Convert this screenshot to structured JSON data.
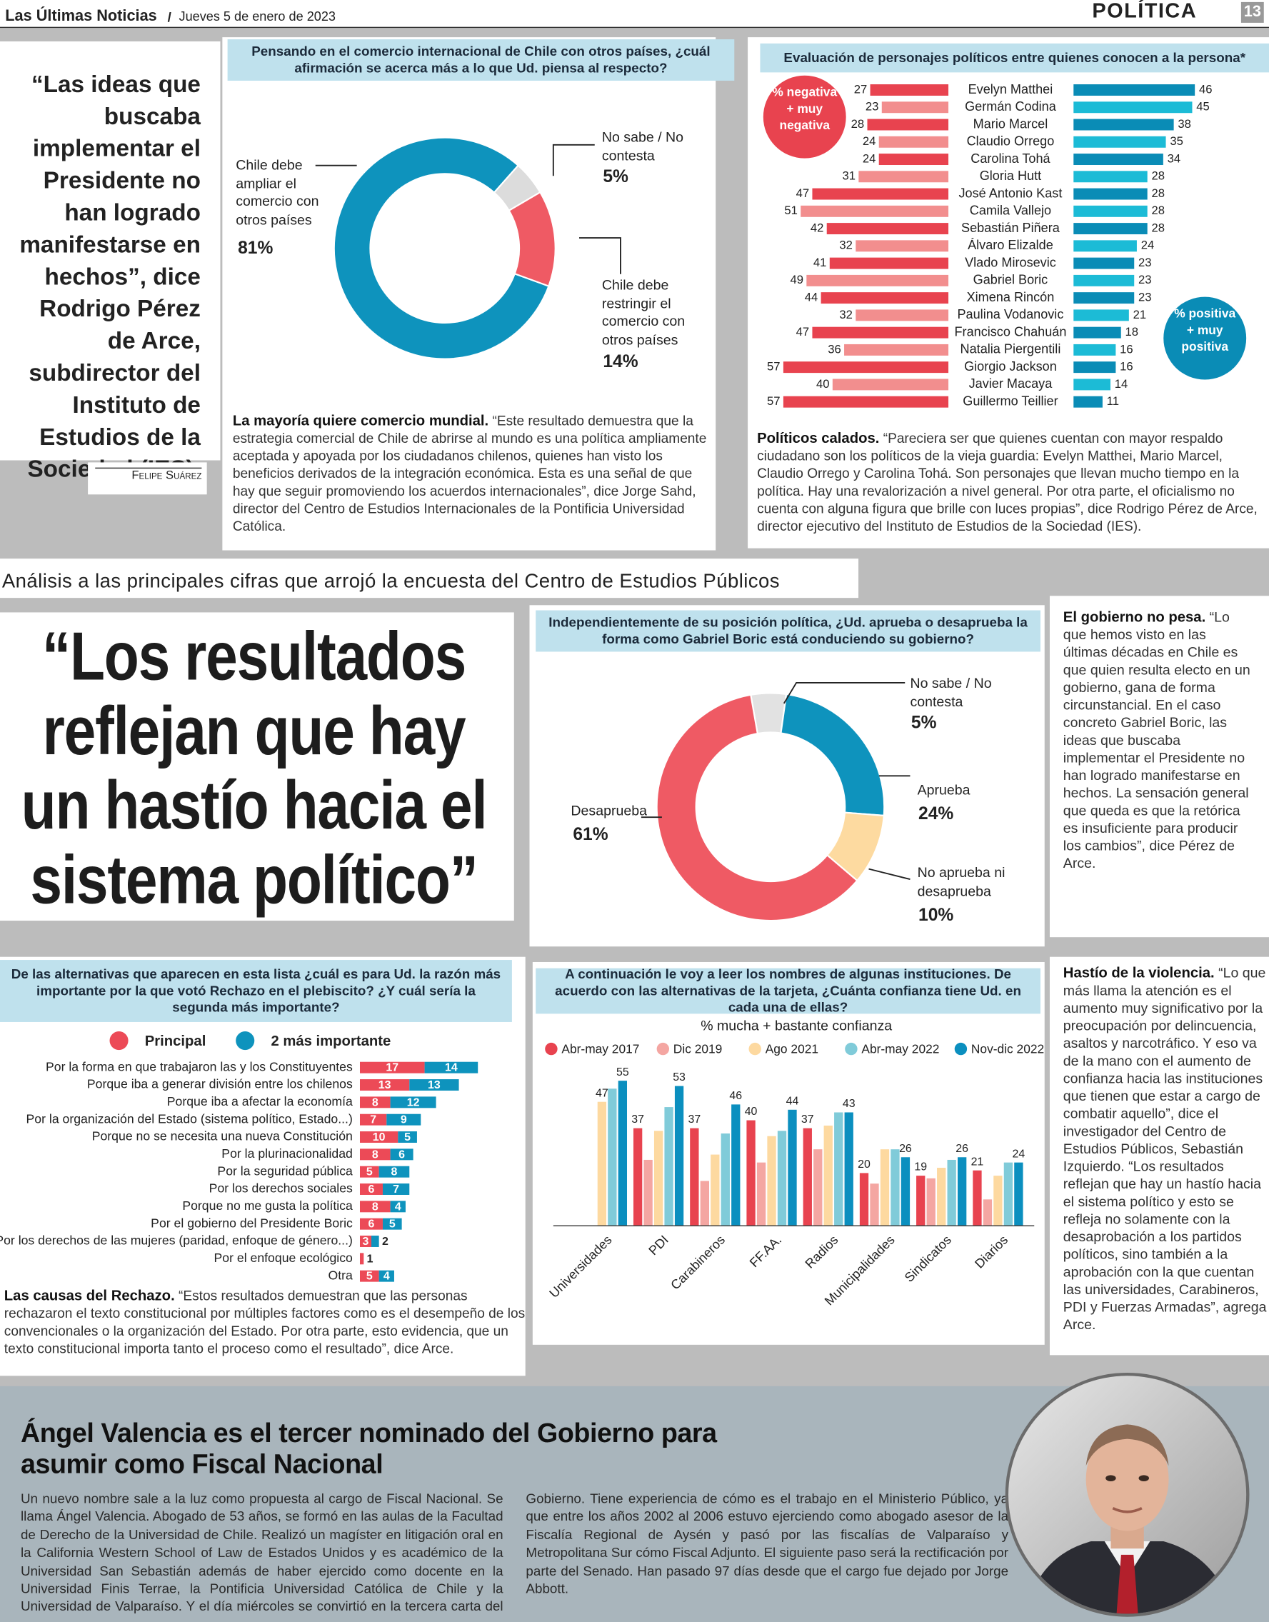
{
  "header": {
    "paper": "Las Últimas Noticias",
    "date": "Jueves 5 de enero de 2023",
    "section": "POLÍTICA",
    "page": "13"
  },
  "side_quote": {
    "text": "“Las ideas que buscaba implementar el Presidente no han logrado manifestarse en hechos”, dice Rodrigo Pérez de Arce, subdirector del Instituto de Estudios de la Sociedad (IES).",
    "credit": "Felipe Suárez"
  },
  "strip": "Análisis a las principales cifras que arrojó la encuesta del Centro de Estudios Públicos",
  "big_quote": "“Los resultados reflejan que hay un hastío hacia el sistema político”",
  "charts": [
    {
      "type": "donut",
      "title": "Pensando en el comercio internacional de Chile con otros países, ¿cuál afirmación se acerca más a lo que Ud. piensa al respecto?",
      "categories": [
        "Chile debe ampliar el comercio con otros países",
        "No sabe / No contesta",
        "Chile debe restringir el comercio con otros países"
      ],
      "values": [
        81,
        5,
        14
      ],
      "value_labels": [
        "81%",
        "5%",
        "14%"
      ],
      "colors": [
        "#0e93bd",
        "#dcdcdc",
        "#ef5a64"
      ],
      "caption_lead": "La mayoría quiere comercio mundial.",
      "caption": "“Este resultado demuestra que la estrategia comercial de Chile de abrirse al mundo es una política ampliamente aceptada y apoyada por los ciudadanos chilenos, quienes han visto los beneficios derivados de la integración económica. Esta es una señal de que hay que seguir promoviendo los acuerdos internacionales”, dice Jorge Sahd, director del Centro de Estudios Internacionales de la Pontificia Universidad Católica."
    },
    {
      "type": "diverging_bar",
      "title": "Evaluación de personajes políticos entre quienes conocen a la persona*",
      "categories": [
        "Evelyn Matthei",
        "Germán Codina",
        "Mario Marcel",
        "Claudio Orrego",
        "Carolina Tohá",
        "Gloria Hutt",
        "José Antonio Kast",
        "Camila Vallejo",
        "Sebastián Piñera",
        "Álvaro Elizalde",
        "Vlado Mirosevic",
        "Gabriel Boric",
        "Ximena Rincón",
        "Paulina Vodanovic",
        "Francisco Chahuán",
        "Natalia Piergentili",
        "Giorgio Jackson",
        "Javier Macaya",
        "Guillermo Teillier"
      ],
      "series": [
        {
          "name": "% negativa + muy negativa",
          "colors": [
            "#e8434f",
            "#f28e8e"
          ],
          "values": [
            27,
            23,
            28,
            24,
            24,
            31,
            47,
            51,
            42,
            32,
            41,
            49,
            44,
            32,
            47,
            36,
            57,
            40,
            57
          ]
        },
        {
          "name": "% positiva + muy positiva",
          "colors": [
            "#0a8cb6",
            "#1cbbd6"
          ],
          "values": [
            46,
            45,
            38,
            35,
            34,
            28,
            28,
            28,
            28,
            24,
            23,
            23,
            23,
            21,
            18,
            16,
            16,
            14,
            11
          ]
        }
      ],
      "caption_lead": "Políticos calados.",
      "caption": "“Pareciera ser que quienes cuentan con mayor respaldo ciudadano son los políticos de la vieja guardia: Evelyn Matthei, Mario Marcel, Claudio Orrego y Carolina Tohá. Son personajes que llevan mucho tiempo en la política. Hay una revalorización a nivel general. Por otra parte, el oficialismo no cuenta con alguna figura que brille con luces propias”, dice Rodrigo Pérez de Arce, director ejecutivo del Instituto de Estudios de la Sociedad (IES)."
    },
    {
      "type": "donut",
      "title": "Independientemente de su posición política, ¿Ud. aprueba o desaprueba la forma como Gabriel Boric está conduciendo su gobierno?",
      "categories": [
        "No sabe / No contesta",
        "Aprueba",
        "No aprueba ni desaprueba",
        "Desaprueba"
      ],
      "values": [
        5,
        24,
        10,
        61
      ],
      "value_labels": [
        "5%",
        "24%",
        "10%",
        "61%"
      ],
      "colors": [
        "#e2e2e2",
        "#0e93bd",
        "#fddaa0",
        "#ef5a64"
      ]
    },
    {
      "type": "stacked_barh",
      "title": "De las alternativas que aparecen en esta lista ¿cuál es para Ud. la razón más importante por la que votó Rechazo en el plebiscito? ¿Y cuál sería la segunda más importante?",
      "categories": [
        "Por la forma en que trabajaron las y los Constituyentes",
        "Porque iba a generar división entre los chilenos",
        "Porque iba a afectar la economía",
        "Por la organización del Estado (sistema político, Estado...)",
        "Porque no se necesita una nueva Constitución",
        "Por la plurinacionalidad",
        "Por la seguridad pública",
        "Por los derechos sociales",
        "Porque no me gusta la política",
        "Por el gobierno del Presidente Boric",
        "Por los derechos de las mujeres (paridad, enfoque de género...)",
        "Por el enfoque ecológico",
        "Otra"
      ],
      "series": [
        {
          "name": "Principal",
          "color": "#ec4a57",
          "values": [
            17,
            13,
            8,
            7,
            10,
            8,
            5,
            6,
            8,
            6,
            3,
            1,
            5
          ]
        },
        {
          "name": "2 más importante",
          "color": "#0e93bd",
          "values": [
            14,
            13,
            12,
            9,
            5,
            6,
            8,
            7,
            4,
            5,
            2,
            null,
            4
          ]
        }
      ],
      "caption_lead": "Las causas del Rechazo.",
      "caption": "“Estos resultados demuestran que las personas rechazaron el texto constitucional por múltiples factores como es el desempeño de los convencionales o la organización del Estado. Por otra parte, esto evidencia, que un texto constitucional importa tanto el proceso como el resultado”, dice Arce."
    },
    {
      "type": "grouped_bar",
      "title": "A continuación le voy a leer los nombres de algunas instituciones. De acuerdo con las alternativas de la tarjeta, ¿Cuánta confianza tiene Ud. en cada una de ellas?",
      "subtitle": "% mucha + bastante confianza",
      "categories": [
        "Universidades",
        "PDI",
        "Carabineros",
        "FF.AA.",
        "Radios",
        "Municipalidades",
        "Sindicatos",
        "Diarios"
      ],
      "series": [
        {
          "name": "Abr-may 2017",
          "color": "#e8434f",
          "values": [
            null,
            37,
            37,
            40,
            37,
            20,
            19,
            21
          ]
        },
        {
          "name": "Dic 2019",
          "color": "#f4a6a2",
          "values": [
            null,
            25,
            17,
            24,
            29,
            16,
            18,
            10
          ]
        },
        {
          "name": "Ago 2021",
          "color": "#fdd9a0",
          "values": [
            47,
            36,
            27,
            34,
            38,
            29,
            22,
            19
          ]
        },
        {
          "name": "Abr-may 2022",
          "color": "#80cbd9",
          "values": [
            52,
            45,
            35,
            36,
            43,
            29,
            25,
            24
          ]
        },
        {
          "name": "Nov-dic 2022",
          "color": "#0b8fbf",
          "values": [
            55,
            53,
            46,
            44,
            43,
            26,
            26,
            24
          ]
        }
      ]
    }
  ],
  "sidebars": [
    {
      "lead": "El gobierno no pesa.",
      "text": "“Lo que hemos visto en las últimas décadas en Chile es que quien resulta electo en un gobierno, gana de forma circunstancial. En el caso concreto Gabriel Boric, las ideas que buscaba implementar el Presidente no han logrado manifestarse en hechos. La sensación general que queda es que la retórica es insuficiente para producir los cambios”, dice Pérez de Arce."
    },
    {
      "lead": "Hastío de la violencia.",
      "text": "“Lo que más llama la atención es el aumento muy significativo por la preocupación por delincuencia, asaltos y narcotráfico. Y eso va de la mano con el aumento de confianza hacia las instituciones que tienen que estar a cargo de combatir aquello”, dice el investigador del Centro de Estudios Públicos, Sebastián Izquierdo. “Los resultados reflejan que hay un hastío hacia el sistema político y esto se refleja no solamente con la desaprobación a los partidos políticos, sino también a la aprobación con la que cuentan las universidades, Carabineros, PDI y Fuerzas Armadas”, agrega Arce."
    }
  ],
  "article": {
    "headline": "Ángel Valencia es el tercer nominado del Gobierno para asumir como Fiscal Nacional",
    "body": "Un nuevo nombre sale a la luz como propuesta al cargo de Fiscal Nacional. Se llama Ángel Valencia. Abogado de 53 años, se formó en las aulas de la Facultad de Derecho de la Universidad de Chile. Realizó un magíster en litigación oral en la California Western School of Law de Estados Unidos y es académico de la Universidad San Sebastián además de haber ejercido como docente en la Universidad Finis Terrae, la Pontificia Universidad Católica de Chile y la Universidad de Valparaíso. Y el día miércoles se convirtió en la tercera carta del Gobierno. Tiene experiencia de cómo es el trabajo en el Ministerio Público, ya que entre los años 2002 al 2006 estuvo ejerciendo como abogado asesor de la Fiscalía Regional de Aysén y pasó por las fiscalías de Valparaíso y Metropolitana Sur cómo Fiscal Adjunto. El siguiente paso será la rectificación por parte del Senado. Han pasado 97 días desde que el cargo fue dejado por Jorge Abbott."
  }
}
